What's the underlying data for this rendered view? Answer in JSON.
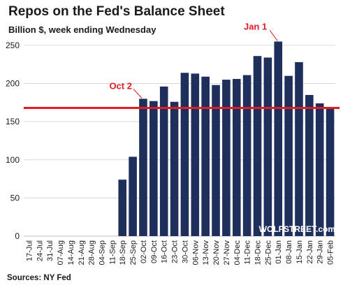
{
  "header": {
    "title": "Repos on the Fed's Balance Sheet",
    "subtitle": "Billion $, week ending Wednesday"
  },
  "footer": {
    "source": "Sources: NY Fed",
    "brand": "WOLFSTREET.com"
  },
  "colors": {
    "bar": "#1f2f5c",
    "reference_line": "#e31b23",
    "annotation": "#e31b23",
    "grid": "#d9d9d9",
    "axis_text": "#1a1a1a"
  },
  "chart_data": {
    "type": "bar",
    "title": "Repos on the Fed's Balance Sheet",
    "subtitle": "Billion $, week ending Wednesday",
    "xlabel": "",
    "ylabel": "",
    "ylim": [
      0,
      260
    ],
    "yticks": [
      0,
      50,
      100,
      150,
      200,
      250
    ],
    "grid": true,
    "categories": [
      "17-Jul",
      "24-Jul",
      "31-Jul",
      "07-Aug",
      "14-Aug",
      "21-Aug",
      "28-Aug",
      "04-Sep",
      "11-Sep",
      "18-Sep",
      "25-Sep",
      "02-Oct",
      "09-Oct",
      "16-Oct",
      "23-Oct",
      "30-Oct",
      "06-Nov",
      "13-Nov",
      "20-Nov",
      "27-Nov",
      "04-Dec",
      "11-Dec",
      "18-Dec",
      "25-Dec",
      "01-Jan",
      "08-Jan",
      "15-Jan",
      "22-Jan",
      "29-Jan",
      "05-Feb"
    ],
    "tick_labels": [
      "17-Jul",
      "24-Jul",
      "31-Jul",
      "07-Aug",
      "14-Aug",
      "21-Aug",
      "28-Aug",
      "04-Sep",
      "11-Sep",
      "18-Sep",
      "25-Sep",
      "02-Oct",
      "09-Oct",
      "16-Oct",
      "23-Oct",
      "30-Oct",
      "06-Nov",
      "13-Nov",
      "20-Nov",
      "27-Nov",
      "04-Dec",
      "11-Dec",
      "18-Dec",
      "25-Dec",
      "01-Jan",
      "08-Jan",
      "15-Jan",
      "22-Jan",
      "29-Jan",
      "05-Feb"
    ],
    "values": [
      0,
      0,
      0,
      0,
      0,
      0,
      0,
      0,
      0,
      74,
      104,
      180,
      177,
      196,
      176,
      214,
      213,
      209,
      198,
      205,
      206,
      211,
      236,
      234,
      255,
      210,
      228,
      185,
      174,
      168
    ],
    "reference_line": {
      "value": 168,
      "label": "Oct 2"
    },
    "annotations": [
      {
        "label": "Jan 1",
        "category": "01-Jan",
        "value": 255
      }
    ]
  }
}
